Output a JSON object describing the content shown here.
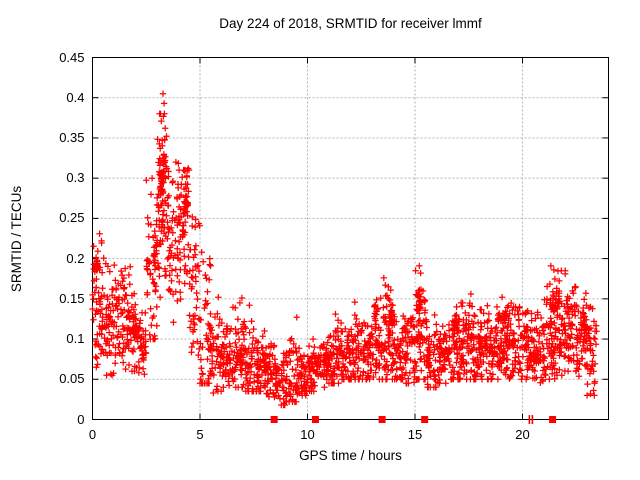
{
  "page": {
    "background": "#ffffff"
  },
  "chart_data": {
    "type": "scatter",
    "title": "Day 224 of 2018, SRMTID for receiver lmmf",
    "xlabel": "GPS time / hours",
    "ylabel": "SRMTID / TECUs",
    "xlim": [
      0,
      24
    ],
    "ylim": [
      0,
      0.45
    ],
    "xticks": [
      0,
      5,
      10,
      15,
      20
    ],
    "xtick_labels": [
      "0",
      "5",
      "10",
      "15",
      "20"
    ],
    "yticks": [
      0,
      0.05,
      0.1,
      0.15,
      0.2,
      0.25,
      0.3,
      0.35,
      0.4,
      0.45
    ],
    "ytick_labels": [
      "0",
      "0.05",
      "0.1",
      "0.15",
      "0.2",
      "0.25",
      "0.3",
      "0.35",
      "0.4",
      "0.45"
    ],
    "grid": {
      "show": true,
      "style": "dashed",
      "color": "#b3b3b3"
    },
    "legend": "none",
    "colors": {
      "points": "#ff0000",
      "border": "#000000",
      "text": "#000000",
      "background": "#ffffff"
    },
    "series": [
      {
        "name": "srmtid-scatter",
        "marker": "plus",
        "color": "#ff0000",
        "density_bins_format": [
          "x_start",
          "x_end",
          "n_points",
          "y_min",
          "y_max",
          "y_center"
        ],
        "density_bins": [
          [
            0.0,
            0.5,
            55,
            0.065,
            0.23,
            0.14
          ],
          [
            0.5,
            1.0,
            50,
            0.055,
            0.21,
            0.125
          ],
          [
            1.0,
            1.5,
            50,
            0.07,
            0.2,
            0.135
          ],
          [
            1.5,
            2.0,
            50,
            0.06,
            0.19,
            0.12
          ],
          [
            2.0,
            2.5,
            45,
            0.045,
            0.14,
            0.095
          ],
          [
            2.5,
            3.0,
            45,
            0.1,
            0.3,
            0.185
          ],
          [
            3.0,
            3.5,
            60,
            0.15,
            0.38,
            0.275
          ],
          [
            3.5,
            4.0,
            50,
            0.12,
            0.32,
            0.22
          ],
          [
            4.0,
            4.5,
            50,
            0.13,
            0.31,
            0.24
          ],
          [
            4.5,
            5.0,
            45,
            0.08,
            0.26,
            0.16
          ],
          [
            5.0,
            5.5,
            50,
            0.045,
            0.2,
            0.1
          ],
          [
            5.5,
            6.0,
            45,
            0.035,
            0.14,
            0.078
          ],
          [
            6.0,
            6.5,
            50,
            0.04,
            0.12,
            0.075
          ],
          [
            6.5,
            7.0,
            50,
            0.04,
            0.145,
            0.078
          ],
          [
            7.0,
            7.5,
            50,
            0.035,
            0.13,
            0.07
          ],
          [
            7.5,
            8.0,
            50,
            0.035,
            0.11,
            0.065
          ],
          [
            8.0,
            8.5,
            50,
            0.028,
            0.1,
            0.06
          ],
          [
            8.5,
            9.0,
            45,
            0.018,
            0.09,
            0.05
          ],
          [
            9.0,
            9.5,
            45,
            0.022,
            0.11,
            0.055
          ],
          [
            9.5,
            10.0,
            45,
            0.03,
            0.09,
            0.055
          ],
          [
            10.0,
            10.5,
            50,
            0.035,
            0.1,
            0.065
          ],
          [
            10.5,
            11.0,
            50,
            0.04,
            0.1,
            0.07
          ],
          [
            11.0,
            11.5,
            50,
            0.045,
            0.125,
            0.075
          ],
          [
            11.5,
            12.0,
            50,
            0.05,
            0.12,
            0.08
          ],
          [
            12.0,
            12.5,
            50,
            0.05,
            0.135,
            0.08
          ],
          [
            12.5,
            13.0,
            50,
            0.05,
            0.13,
            0.085
          ],
          [
            13.0,
            13.5,
            55,
            0.05,
            0.16,
            0.09
          ],
          [
            13.5,
            14.0,
            55,
            0.05,
            0.165,
            0.095
          ],
          [
            14.0,
            14.5,
            50,
            0.05,
            0.13,
            0.08
          ],
          [
            14.5,
            15.0,
            50,
            0.045,
            0.14,
            0.085
          ],
          [
            15.0,
            15.5,
            55,
            0.05,
            0.185,
            0.1
          ],
          [
            15.5,
            16.0,
            50,
            0.04,
            0.13,
            0.08
          ],
          [
            16.0,
            16.5,
            50,
            0.045,
            0.12,
            0.08
          ],
          [
            16.5,
            17.0,
            50,
            0.05,
            0.14,
            0.085
          ],
          [
            17.0,
            17.5,
            55,
            0.05,
            0.145,
            0.09
          ],
          [
            17.5,
            18.0,
            55,
            0.05,
            0.15,
            0.09
          ],
          [
            18.0,
            18.5,
            55,
            0.05,
            0.145,
            0.09
          ],
          [
            18.5,
            19.0,
            55,
            0.05,
            0.14,
            0.09
          ],
          [
            19.0,
            19.5,
            55,
            0.05,
            0.15,
            0.095
          ],
          [
            19.5,
            20.0,
            50,
            0.05,
            0.14,
            0.09
          ],
          [
            20.0,
            20.5,
            50,
            0.05,
            0.135,
            0.09
          ],
          [
            20.5,
            21.0,
            50,
            0.045,
            0.14,
            0.09
          ],
          [
            21.0,
            21.5,
            55,
            0.05,
            0.17,
            0.1
          ],
          [
            21.5,
            22.0,
            55,
            0.055,
            0.185,
            0.11
          ],
          [
            22.0,
            22.5,
            55,
            0.06,
            0.165,
            0.105
          ],
          [
            22.5,
            23.0,
            50,
            0.045,
            0.155,
            0.1
          ],
          [
            23.0,
            23.45,
            40,
            0.03,
            0.14,
            0.08
          ]
        ],
        "clusters_format": [
          "x",
          "y",
          "n",
          "x_spread",
          "y_spread"
        ],
        "clusters": [
          [
            0.2,
            0.19,
            30,
            0.08,
            0.01
          ],
          [
            1.95,
            0.112,
            22,
            0.12,
            0.009
          ],
          [
            3.25,
            0.3,
            40,
            0.18,
            0.04
          ],
          [
            4.35,
            0.265,
            28,
            0.18,
            0.03
          ],
          [
            2.95,
            0.21,
            15,
            0.1,
            0.02
          ],
          [
            13.9,
            0.13,
            18,
            0.22,
            0.02
          ],
          [
            15.15,
            0.15,
            16,
            0.12,
            0.025
          ],
          [
            21.5,
            0.145,
            20,
            0.25,
            0.025
          ],
          [
            22.85,
            0.12,
            18,
            0.18,
            0.022
          ],
          [
            16.9,
            0.12,
            14,
            0.2,
            0.015
          ],
          [
            19.2,
            0.125,
            14,
            0.2,
            0.015
          ]
        ],
        "outlier_points": [
          [
            3.28,
            0.405
          ],
          [
            3.33,
            0.393
          ],
          [
            3.2,
            0.371
          ],
          [
            3.38,
            0.362
          ],
          [
            3.24,
            0.347
          ],
          [
            3.44,
            0.352
          ],
          [
            3.15,
            0.337
          ],
          [
            4.45,
            0.312
          ],
          [
            2.98,
            0.247
          ],
          [
            0.33,
            0.231
          ],
          [
            0.42,
            0.222
          ],
          [
            5.08,
            0.208
          ],
          [
            5.15,
            0.196
          ],
          [
            5.85,
            0.152
          ],
          [
            6.95,
            0.151
          ],
          [
            7.3,
            0.142
          ],
          [
            9.5,
            0.127
          ],
          [
            11.3,
            0.131
          ],
          [
            12.2,
            0.146
          ],
          [
            13.55,
            0.176
          ],
          [
            13.62,
            0.167
          ],
          [
            15.2,
            0.191
          ],
          [
            15.26,
            0.182
          ],
          [
            17.6,
            0.156
          ],
          [
            19.05,
            0.152
          ],
          [
            21.32,
            0.191
          ],
          [
            21.46,
            0.186
          ],
          [
            22.95,
            0.157
          ],
          [
            23.3,
            0.036
          ],
          [
            8.9,
            0.02
          ],
          [
            9.02,
            0.023
          ],
          [
            8.72,
            0.026
          ],
          [
            5.62,
            0.033
          ],
          [
            23.35,
            0.045
          ]
        ]
      },
      {
        "name": "data-gap-markers",
        "marker": "filled-square",
        "color": "#ff0000",
        "points": [
          [
            8.45,
            0
          ],
          [
            10.37,
            0
          ],
          [
            13.47,
            0
          ],
          [
            15.45,
            0
          ],
          [
            21.4,
            0
          ]
        ]
      },
      {
        "name": "axis-tick-marks",
        "marker": "vertical-bar",
        "color": "#ff0000",
        "points": [
          [
            20.32,
            0
          ],
          [
            20.46,
            0
          ]
        ]
      }
    ]
  }
}
